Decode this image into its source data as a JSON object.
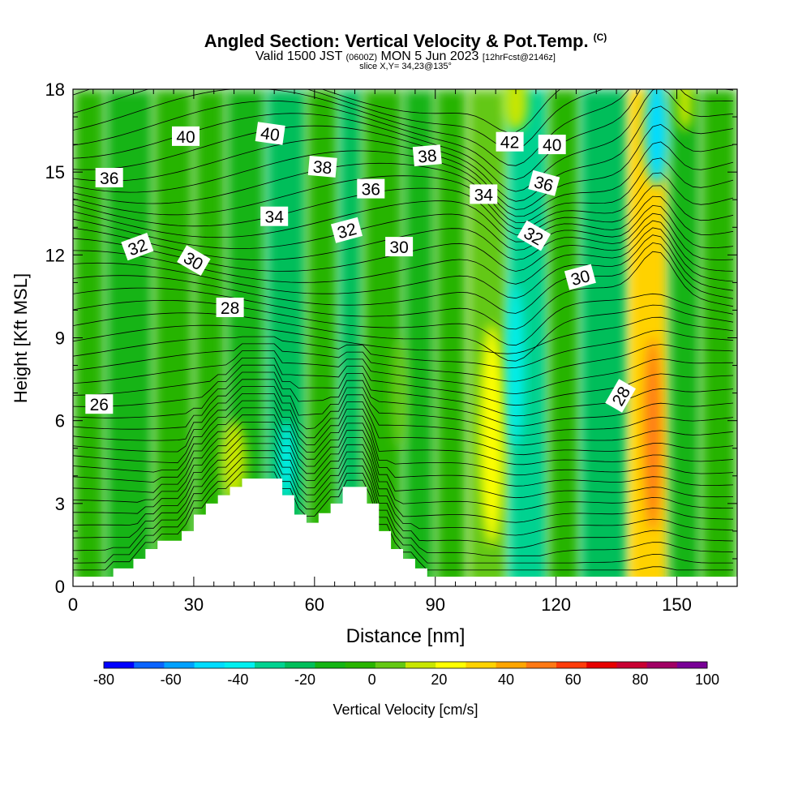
{
  "header": {
    "title": "Angled Section: Vertical Velocity & Pot.Temp.",
    "copyright": "(C)",
    "valid_prefix": "Valid 1500 JST",
    "valid_utc": "(0600Z)",
    "valid_date": "MON 5 Jun 2023",
    "forecast": "[12hrFcst@2146z]",
    "slice": "slice X,Y= 34,23@135°"
  },
  "chart_data": {
    "type": "heatmap",
    "title": "Angled Section: Vertical Velocity & Pot.Temp.",
    "xlabel": "Distance [nm]",
    "ylabel": "Height [Kft MSL]",
    "xlim": [
      0,
      165
    ],
    "ylim": [
      0,
      18
    ],
    "x_ticks": [
      0,
      30,
      60,
      90,
      120,
      150
    ],
    "y_ticks": [
      0,
      3,
      6,
      9,
      12,
      15,
      18
    ],
    "colorbar": {
      "label": "Vertical Velocity [cm/s]",
      "tick_labels": [
        "-80",
        "-60",
        "-40",
        "-20",
        "0",
        "20",
        "40",
        "60",
        "80",
        "100"
      ],
      "bounds": [
        -80,
        100
      ],
      "step": 10,
      "colors": [
        "#0000ff",
        "#0a64ff",
        "#00a0ff",
        "#00dcff",
        "#00f0f0",
        "#00d290",
        "#00be5a",
        "#14b414",
        "#28b400",
        "#64c814",
        "#c8e600",
        "#ffff00",
        "#ffd200",
        "#ffa500",
        "#ff7814",
        "#ff3c0a",
        "#e60000",
        "#c80032",
        "#a00064",
        "#780096"
      ]
    },
    "velocity_cells": [
      {
        "x": [
          0,
          8
        ],
        "z": [
          0,
          18
        ],
        "value": 3
      },
      {
        "x": [
          8,
          20
        ],
        "z": [
          0,
          18
        ],
        "value": -5
      },
      {
        "x": [
          20,
          30
        ],
        "z": [
          0,
          18
        ],
        "value": 5
      },
      {
        "x": [
          30,
          38
        ],
        "z": [
          0,
          18
        ],
        "value": 5
      },
      {
        "x": [
          38,
          48
        ],
        "z": [
          0,
          18
        ],
        "value": -5
      },
      {
        "x": [
          48,
          58
        ],
        "z": [
          0,
          18
        ],
        "value": -15
      },
      {
        "x": [
          58,
          66
        ],
        "z": [
          0,
          18
        ],
        "value": 5
      },
      {
        "x": [
          66,
          72
        ],
        "z": [
          0,
          18
        ],
        "value": -15
      },
      {
        "x": [
          72,
          82
        ],
        "z": [
          0,
          18
        ],
        "value": 5
      },
      {
        "x": [
          82,
          90
        ],
        "z": [
          0,
          18
        ],
        "value": -5
      },
      {
        "x": [
          90,
          98
        ],
        "z": [
          0,
          18
        ],
        "value": 3
      },
      {
        "x": [
          98,
          108
        ],
        "z": [
          0,
          18
        ],
        "value": 18
      },
      {
        "x": [
          108,
          118
        ],
        "z": [
          0,
          18
        ],
        "value": -25
      },
      {
        "x": [
          118,
          126
        ],
        "z": [
          0,
          18
        ],
        "value": 5
      },
      {
        "x": [
          126,
          138
        ],
        "z": [
          0,
          18
        ],
        "value": -12
      },
      {
        "x": [
          138,
          148
        ],
        "z": [
          0,
          18
        ],
        "value": 45
      },
      {
        "x": [
          148,
          156
        ],
        "z": [
          0,
          18
        ],
        "value": -5
      },
      {
        "x": [
          156,
          165
        ],
        "z": [
          0,
          18
        ],
        "value": 5
      }
    ],
    "velocity_features": [
      {
        "name": "updraft core",
        "x_center": 144,
        "z_center": 5.5,
        "x_halfwidth": 2,
        "z_halfheight": 3.5,
        "value": 60
      },
      {
        "name": "updraft",
        "x_center": 104,
        "z_center": 5.5,
        "x_halfwidth": 3,
        "z_halfheight": 4,
        "value": 30
      },
      {
        "name": "downdraft core",
        "x_center": 110,
        "z_center": 8,
        "x_halfwidth": 2,
        "z_halfheight": 3,
        "value": -35
      },
      {
        "name": "downdraft core",
        "x_center": 53,
        "z_center": 4.5,
        "x_halfwidth": 2,
        "z_halfheight": 1.5,
        "value": -35
      },
      {
        "name": "upper downdraft",
        "x_center": 145,
        "z_center": 16.5,
        "x_halfwidth": 3,
        "z_halfheight": 2,
        "value": -45
      },
      {
        "name": "upper updraft",
        "x_center": 110,
        "z_center": 17.5,
        "x_halfwidth": 3,
        "z_halfheight": 1,
        "value": 25
      },
      {
        "name": "upper updraft",
        "x_center": 152,
        "z_center": 17.5,
        "x_halfwidth": 2,
        "z_halfheight": 1,
        "value": 20
      },
      {
        "name": "low updraft",
        "x_center": 40,
        "z_center": 4.5,
        "x_halfwidth": 3,
        "z_halfheight": 1.5,
        "value": 20
      },
      {
        "name": "updraft",
        "x_center": 81,
        "z_center": 7,
        "x_halfwidth": 2,
        "z_halfheight": 2,
        "value": 15
      }
    ],
    "terrain": {
      "x": [
        0,
        10,
        10,
        15,
        15,
        18,
        18,
        21,
        21,
        27,
        27,
        30,
        30,
        33,
        33,
        36,
        36,
        39,
        39,
        42,
        42,
        45,
        45,
        52,
        52,
        55,
        55,
        58,
        58,
        61,
        61,
        64,
        64,
        67,
        67,
        73,
        73,
        76,
        76,
        79,
        79,
        82,
        82,
        85,
        85,
        88,
        88,
        91,
        91,
        165
      ],
      "z": [
        0.35,
        0.35,
        0.65,
        0.65,
        1.0,
        1.0,
        1.35,
        1.35,
        1.65,
        1.65,
        2.0,
        2.0,
        2.6,
        2.6,
        3.0,
        3.0,
        3.3,
        3.3,
        3.6,
        3.6,
        3.9,
        3.9,
        3.9,
        3.9,
        3.3,
        3.3,
        2.6,
        2.6,
        2.3,
        2.3,
        2.65,
        2.65,
        3.0,
        3.0,
        3.6,
        3.6,
        3.0,
        3.0,
        2.0,
        2.0,
        1.35,
        1.35,
        1.0,
        1.0,
        0.65,
        0.65,
        0.35,
        0.35,
        0.35,
        0.35
      ]
    },
    "theta_contour_labels": [
      {
        "value": "26",
        "x": 6.5,
        "z": 6.6,
        "angle": 0
      },
      {
        "value": "28",
        "x": 39,
        "z": 10.1,
        "angle": 0
      },
      {
        "value": "28",
        "x": 136,
        "z": 6.9,
        "angle": -60
      },
      {
        "value": "30",
        "x": 30,
        "z": 11.8,
        "angle": 30
      },
      {
        "value": "30",
        "x": 81,
        "z": 12.3,
        "angle": 0
      },
      {
        "value": "30",
        "x": 126,
        "z": 11.2,
        "angle": -15
      },
      {
        "value": "32",
        "x": 16,
        "z": 12.3,
        "angle": -20
      },
      {
        "value": "32",
        "x": 68,
        "z": 12.9,
        "angle": -15
      },
      {
        "value": "32",
        "x": 114.5,
        "z": 12.7,
        "angle": 30
      },
      {
        "value": "34",
        "x": 50,
        "z": 13.4,
        "angle": 0
      },
      {
        "value": "34",
        "x": 102,
        "z": 14.2,
        "angle": 0
      },
      {
        "value": "36",
        "x": 9,
        "z": 14.8,
        "angle": 0
      },
      {
        "value": "36",
        "x": 74,
        "z": 14.4,
        "angle": 0
      },
      {
        "value": "36",
        "x": 117,
        "z": 14.6,
        "angle": 15
      },
      {
        "value": "38",
        "x": 62,
        "z": 15.2,
        "angle": 5
      },
      {
        "value": "38",
        "x": 88,
        "z": 15.6,
        "angle": -5
      },
      {
        "value": "40",
        "x": 28,
        "z": 16.3,
        "angle": 0
      },
      {
        "value": "40",
        "x": 49,
        "z": 16.4,
        "angle": 8
      },
      {
        "value": "40",
        "x": 119,
        "z": 16.0,
        "angle": 0
      },
      {
        "value": "42",
        "x": 108.5,
        "z": 16.1,
        "angle": 0
      }
    ]
  }
}
